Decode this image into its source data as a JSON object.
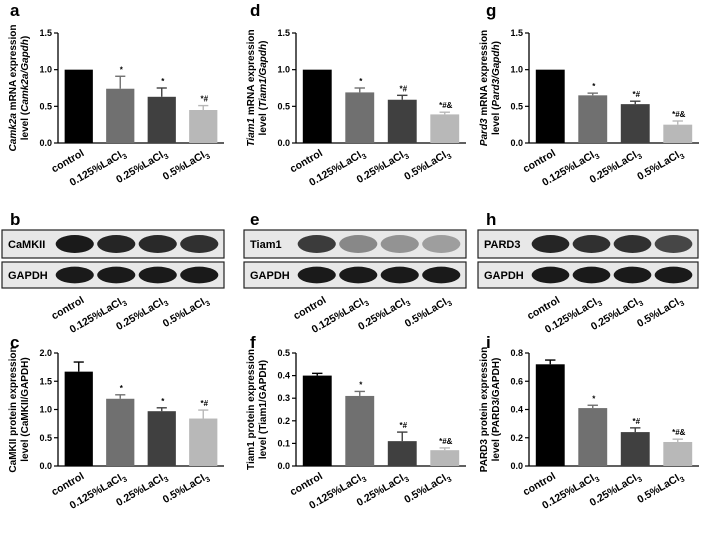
{
  "bar_colors": [
    "#000000",
    "#707070",
    "#404040",
    "#b8b8b8"
  ],
  "blot_labels": [
    "control",
    "0.125%LaCl3",
    "0.25%LaCl3",
    "0.5%LaCl3"
  ],
  "chart_data": [
    {
      "id": "a",
      "letter": "a",
      "type": "bar",
      "ylabel_parts": [
        {
          "t": "Camk2a",
          "i": true
        },
        {
          "t": " mRNA expression"
        }
      ],
      "ylabel2_parts": [
        {
          "t": "level ("
        },
        {
          "t": "Camk2a/Gapdh",
          "i": true
        },
        {
          "t": ")"
        }
      ],
      "categories": [
        "control",
        "0.125%LaCl3",
        "0.25%LaCl3",
        "0.5%LaCl3"
      ],
      "values": [
        1.0,
        0.74,
        0.63,
        0.45
      ],
      "errors": [
        0,
        0.17,
        0.12,
        0.06
      ],
      "annotations": [
        "",
        "*",
        "*",
        "*#"
      ],
      "ylim": [
        0,
        1.5
      ],
      "ticks": [
        0.0,
        0.5,
        1.0,
        1.5
      ],
      "tick_labels": [
        "0.0",
        "0.5",
        "1.0",
        "1.5"
      ]
    },
    {
      "id": "d",
      "letter": "d",
      "type": "bar",
      "ylabel_parts": [
        {
          "t": "Tiam1",
          "i": true
        },
        {
          "t": " mRNA expression"
        }
      ],
      "ylabel2_parts": [
        {
          "t": "level ("
        },
        {
          "t": "Tiam1/Gapdh",
          "i": true
        },
        {
          "t": ")"
        }
      ],
      "categories": [
        "control",
        "0.125%LaCl3",
        "0.25%LaCl3",
        "0.5%LaCl3"
      ],
      "values": [
        1.0,
        0.69,
        0.59,
        0.39
      ],
      "errors": [
        0,
        0.06,
        0.06,
        0.03
      ],
      "annotations": [
        "",
        "*",
        "*#",
        "*#&"
      ],
      "ylim": [
        0,
        1.5
      ],
      "ticks": [
        0.0,
        0.5,
        1.0,
        1.5
      ],
      "tick_labels": [
        "0.0",
        "0.5",
        "1.0",
        "1.5"
      ]
    },
    {
      "id": "g",
      "letter": "g",
      "type": "bar",
      "ylabel_parts": [
        {
          "t": "Pard3",
          "i": true
        },
        {
          "t": " mRNA expression"
        }
      ],
      "ylabel2_parts": [
        {
          "t": "level ("
        },
        {
          "t": "Pard3/Gapdh",
          "i": true
        },
        {
          "t": ")"
        }
      ],
      "categories": [
        "control",
        "0.125%LaCl3",
        "0.25%LaCl3",
        "0.5%LaCl3"
      ],
      "values": [
        1.0,
        0.65,
        0.53,
        0.25
      ],
      "errors": [
        0,
        0.03,
        0.04,
        0.05
      ],
      "annotations": [
        "",
        "*",
        "*#",
        "*#&"
      ],
      "ylim": [
        0,
        1.5
      ],
      "ticks": [
        0.0,
        0.5,
        1.0,
        1.5
      ],
      "tick_labels": [
        "0.0",
        "0.5",
        "1.0",
        "1.5"
      ]
    },
    {
      "id": "c",
      "letter": "c",
      "type": "bar",
      "ylabel_parts": [
        {
          "t": "CaMKII protein expression"
        }
      ],
      "ylabel2_parts": [
        {
          "t": "level (CaMKII/GAPDH)"
        }
      ],
      "categories": [
        "control",
        "0.125%LaCl3",
        "0.25%LaCl3",
        "0.5%LaCl3"
      ],
      "values": [
        1.67,
        1.19,
        0.97,
        0.84
      ],
      "errors": [
        0.17,
        0.07,
        0.06,
        0.15
      ],
      "annotations": [
        "",
        "*",
        "*",
        "*#"
      ],
      "ylim": [
        0,
        2.0
      ],
      "ticks": [
        0.0,
        0.5,
        1.0,
        1.5,
        2.0
      ],
      "tick_labels": [
        "0.0",
        "0.5",
        "1.0",
        "1.5",
        "2.0"
      ]
    },
    {
      "id": "f",
      "letter": "f",
      "type": "bar",
      "ylabel_parts": [
        {
          "t": "Tiam1 protein expression"
        }
      ],
      "ylabel2_parts": [
        {
          "t": "level (Tiam1/GAPDH)"
        }
      ],
      "categories": [
        "control",
        "0.125%LaCl3",
        "0.25%LaCl3",
        "0.5%LaCl3"
      ],
      "values": [
        0.4,
        0.31,
        0.11,
        0.07
      ],
      "errors": [
        0.01,
        0.02,
        0.04,
        0.01
      ],
      "annotations": [
        "",
        "*",
        "*#",
        "*#&"
      ],
      "ylim": [
        0,
        0.5
      ],
      "ticks": [
        0.0,
        0.1,
        0.2,
        0.3,
        0.4,
        0.5
      ],
      "tick_labels": [
        "0.0",
        "0.1",
        "0.2",
        "0.3",
        "0.4",
        "0.5"
      ]
    },
    {
      "id": "i",
      "letter": "i",
      "type": "bar",
      "ylabel_parts": [
        {
          "t": "PARD3 protein expression"
        }
      ],
      "ylabel2_parts": [
        {
          "t": "level (PARD3/GAPDH)"
        }
      ],
      "categories": [
        "control",
        "0.125%LaCl3",
        "0.25%LaCl3",
        "0.5%LaCl3"
      ],
      "values": [
        0.72,
        0.41,
        0.24,
        0.17
      ],
      "errors": [
        0.03,
        0.02,
        0.03,
        0.02
      ],
      "annotations": [
        "",
        "*",
        "*#",
        "*#&"
      ],
      "ylim": [
        0,
        0.8
      ],
      "ticks": [
        0.0,
        0.2,
        0.4,
        0.6,
        0.8
      ],
      "tick_labels": [
        "0.0",
        "0.2",
        "0.4",
        "0.6",
        "0.8"
      ]
    }
  ],
  "blots": [
    {
      "id": "b",
      "letter": "b",
      "rows": [
        {
          "label": "CaMKII",
          "intensity": [
            0.95,
            0.9,
            0.88,
            0.85
          ]
        },
        {
          "label": "GAPDH",
          "intensity": [
            0.95,
            0.95,
            0.95,
            0.95
          ]
        }
      ]
    },
    {
      "id": "e",
      "letter": "e",
      "rows": [
        {
          "label": "Tiam1",
          "intensity": [
            0.8,
            0.45,
            0.4,
            0.35
          ]
        },
        {
          "label": "GAPDH",
          "intensity": [
            0.95,
            0.95,
            0.95,
            0.95
          ]
        }
      ]
    },
    {
      "id": "h",
      "letter": "h",
      "rows": [
        {
          "label": "PARD3",
          "intensity": [
            0.9,
            0.85,
            0.85,
            0.75
          ]
        },
        {
          "label": "GAPDH",
          "intensity": [
            0.95,
            0.95,
            0.95,
            0.95
          ]
        }
      ]
    }
  ]
}
